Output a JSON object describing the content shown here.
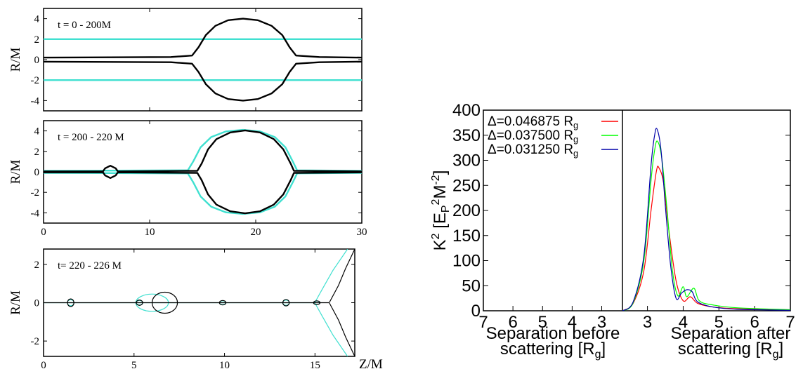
{
  "chart_data": [
    {
      "type": "line",
      "panel_label": "t = 0 - 200M",
      "ylabel": "R/M",
      "xlim": [
        0,
        30
      ],
      "ylim": [
        -5,
        5
      ],
      "yticks": [
        "4",
        "2",
        "0",
        "-2",
        "-4"
      ],
      "xtick_labels": [],
      "series": [
        {
          "color": "#000000",
          "values": [
            {
              "x": 0,
              "r": 0.2
            },
            {
              "x": 12,
              "r": 0.25
            },
            {
              "x": 14,
              "r": 0.4
            },
            {
              "x": 14.6,
              "r": 1.2
            },
            {
              "x": 15.3,
              "r": 2.4
            },
            {
              "x": 16.2,
              "r": 3.3
            },
            {
              "x": 17.4,
              "r": 3.85
            },
            {
              "x": 18.8,
              "r": 4.0
            },
            {
              "x": 20.2,
              "r": 3.85
            },
            {
              "x": 21.5,
              "r": 3.3
            },
            {
              "x": 22.5,
              "r": 2.4
            },
            {
              "x": 23.2,
              "r": 1.2
            },
            {
              "x": 23.8,
              "r": 0.4
            },
            {
              "x": 26,
              "r": 0.25
            },
            {
              "x": 30,
              "r": 0.2
            }
          ]
        },
        {
          "color": "#40e0d0",
          "values": [
            {
              "x": 0,
              "r": 2.0
            },
            {
              "x": 10,
              "r": 2.0
            },
            {
              "x": 20,
              "r": 2.0
            },
            {
              "x": 30,
              "r": 2.0
            }
          ]
        }
      ]
    },
    {
      "type": "line",
      "panel_label": "t = 200 - 220 M",
      "ylabel": "R/M",
      "xlabel_ticks": [
        "0",
        "10",
        "20",
        "30"
      ],
      "xlim": [
        0,
        30
      ],
      "ylim": [
        -5,
        5
      ],
      "yticks": [
        "4",
        "2",
        "0",
        "-2",
        "-4"
      ],
      "series": [
        {
          "color": "#000000",
          "values": [
            {
              "x": 0,
              "r": 0.05
            },
            {
              "x": 5.6,
              "r": 0.05
            },
            {
              "x": 5.8,
              "r": 0.35
            },
            {
              "x": 6.3,
              "r": 0.6
            },
            {
              "x": 6.8,
              "r": 0.35
            },
            {
              "x": 7.0,
              "r": 0.05
            },
            {
              "x": 14.5,
              "r": 0.1
            },
            {
              "x": 14.9,
              "r": 0.8
            },
            {
              "x": 15.5,
              "r": 2.2
            },
            {
              "x": 16.3,
              "r": 3.2
            },
            {
              "x": 17.6,
              "r": 3.85
            },
            {
              "x": 19.0,
              "r": 4.05
            },
            {
              "x": 20.4,
              "r": 3.85
            },
            {
              "x": 21.7,
              "r": 3.2
            },
            {
              "x": 22.6,
              "r": 2.2
            },
            {
              "x": 23.3,
              "r": 0.8
            },
            {
              "x": 23.6,
              "r": 0.1
            },
            {
              "x": 30,
              "r": 0.05
            }
          ]
        },
        {
          "color": "#40e0d0",
          "values": [
            {
              "x": 0,
              "r": 0.1
            },
            {
              "x": 13.6,
              "r": 0.15
            },
            {
              "x": 14.1,
              "r": 1.0
            },
            {
              "x": 14.8,
              "r": 2.4
            },
            {
              "x": 15.8,
              "r": 3.4
            },
            {
              "x": 17.2,
              "r": 3.95
            },
            {
              "x": 18.8,
              "r": 4.1
            },
            {
              "x": 20.4,
              "r": 3.95
            },
            {
              "x": 21.8,
              "r": 3.4
            },
            {
              "x": 22.8,
              "r": 2.4
            },
            {
              "x": 23.5,
              "r": 1.0
            },
            {
              "x": 23.9,
              "r": 0.15
            },
            {
              "x": 30,
              "r": 0.1
            }
          ]
        }
      ]
    },
    {
      "type": "line",
      "panel_label": "t= 220 - 226 M",
      "ylabel": "R/M",
      "xlabel": "Z/M",
      "xtick_labels": [
        "0",
        "5",
        "10",
        "15"
      ],
      "xlim": [
        0,
        17.2
      ],
      "ylim": [
        -2.8,
        2.8
      ],
      "yticks": [
        "2",
        "0",
        "-2"
      ],
      "series": [
        {
          "color": "#000000",
          "name": "",
          "bubbles": [
            {
              "x": 1.5,
              "r": 0.16
            },
            {
              "x": 5.3,
              "r": 0.1
            },
            {
              "x": 9.9,
              "r": 0.08
            },
            {
              "x": 13.4,
              "r": 0.13
            },
            {
              "x": 15.1,
              "r": 0.06
            }
          ],
          "big_bubble": {
            "x": 6.7,
            "r": 0.55,
            "half_width": 0.7
          },
          "horn": [
            {
              "x": 15.8,
              "r": 0.02
            },
            {
              "x": 16.3,
              "r": 0.9
            },
            {
              "x": 16.7,
              "r": 1.8
            },
            {
              "x": 17.2,
              "r": 2.8
            }
          ]
        },
        {
          "color": "#40e0d0",
          "name": "",
          "bubbles": [
            {
              "x": 1.5,
              "r": 0.12
            },
            {
              "x": 5.3,
              "r": 0.08
            },
            {
              "x": 9.9,
              "r": 0.06
            },
            {
              "x": 13.4,
              "r": 0.1
            },
            {
              "x": 15.1,
              "r": 0.05
            }
          ],
          "big_bubble": {
            "x": 6.0,
            "r": 0.45,
            "half_width": 0.9
          },
          "horn": [
            {
              "x": 15.0,
              "r": 0.02
            },
            {
              "x": 15.4,
              "r": 0.7
            },
            {
              "x": 16.0,
              "r": 1.7
            },
            {
              "x": 16.8,
              "r": 2.8
            }
          ]
        }
      ]
    },
    {
      "type": "line",
      "ylabel": "K² [E_P²M⁻²]",
      "ylabel_parts": {
        "k": "K",
        "k_sup": "2",
        "open": " [E",
        "p_sub": "P",
        "two_sup": "2",
        "m": "M",
        "m_sup": "-2",
        "close": "]"
      },
      "ylim": [
        0,
        400
      ],
      "yticks": [
        "0",
        "50",
        "100",
        "150",
        "200",
        "250",
        "300",
        "350",
        "400"
      ],
      "x_left_ticks": [
        "7",
        "6",
        "5",
        "4",
        "3"
      ],
      "x_right_ticks": [
        "3",
        "4",
        "5",
        "6",
        "7"
      ],
      "x_left_label_1": "Separation before",
      "x_left_label_2": "scattering [R",
      "x_right_label_1": "Separation after",
      "x_right_label_2": "scattering [R",
      "x_sub": "g",
      "x_close": "]",
      "legend_position": "top-left",
      "series": [
        {
          "name": "Δ=0.046875 R",
          "name_sub": "g",
          "color": "#ff0000",
          "points": [
            [
              2.3,
              0
            ],
            [
              2.6,
              15
            ],
            [
              2.9,
              80
            ],
            [
              3.1,
              200
            ],
            [
              3.25,
              278
            ],
            [
              3.32,
              285
            ],
            [
              3.45,
              255
            ],
            [
              3.6,
              160
            ],
            [
              3.8,
              60
            ],
            [
              4.0,
              20
            ],
            [
              4.2,
              28
            ],
            [
              4.4,
              15
            ],
            [
              4.8,
              8
            ],
            [
              5.5,
              4
            ],
            [
              7,
              2
            ]
          ]
        },
        {
          "name": "Δ=0.037500 R",
          "name_sub": "g",
          "color": "#00ff00",
          "points": [
            [
              2.3,
              0
            ],
            [
              2.6,
              16
            ],
            [
              2.9,
              100
            ],
            [
              3.1,
              260
            ],
            [
              3.2,
              320
            ],
            [
              3.28,
              338
            ],
            [
              3.4,
              305
            ],
            [
              3.55,
              200
            ],
            [
              3.7,
              80
            ],
            [
              3.85,
              30
            ],
            [
              4.0,
              48
            ],
            [
              4.1,
              28
            ],
            [
              4.3,
              45
            ],
            [
              4.45,
              20
            ],
            [
              4.8,
              12
            ],
            [
              5.5,
              6
            ],
            [
              7,
              2
            ]
          ]
        },
        {
          "name": "Δ=0.031250 R",
          "name_sub": "g",
          "color": "#0000aa",
          "points": [
            [
              2.3,
              0
            ],
            [
              2.6,
              18
            ],
            [
              2.9,
              110
            ],
            [
              3.1,
              290
            ],
            [
              3.2,
              350
            ],
            [
              3.27,
              362
            ],
            [
              3.38,
              320
            ],
            [
              3.5,
              210
            ],
            [
              3.65,
              90
            ],
            [
              3.8,
              25
            ],
            [
              3.95,
              35
            ],
            [
              4.1,
              42
            ],
            [
              4.25,
              38
            ],
            [
              4.4,
              18
            ],
            [
              4.8,
              8
            ],
            [
              5.5,
              3
            ],
            [
              7,
              1
            ]
          ]
        }
      ]
    }
  ]
}
